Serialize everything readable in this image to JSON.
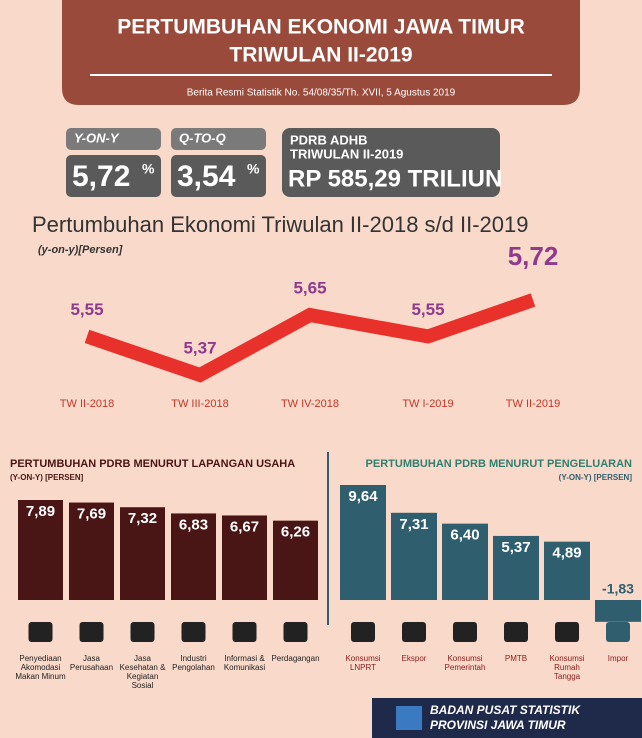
{
  "header": {
    "title_line1": "PERTUMBUHAN EKONOMI JAWA TIMUR",
    "title_line2": "TRIWULAN II-2019",
    "subtitle": "Berita Resmi Statistik No. 54/08/35/Th. XVII, 5 Agustus 2019"
  },
  "kpis": [
    {
      "label": "Y-ON-Y",
      "value": "5,72",
      "unit": "%"
    },
    {
      "label": "Q-TO-Q",
      "value": "3,54",
      "unit": "%"
    },
    {
      "label_line1": "PDRB ADHB",
      "label_line2": "TRIWULAN II-2019",
      "value": "RP 585,29 TRILIUN"
    }
  ],
  "chart_data": [
    {
      "type": "line",
      "title": "Pertumbuhan Ekonomi Triwulan II-2018 s/d II-2019",
      "subtitle": "(y-on-y)[Persen]",
      "categories": [
        "TW II-2018",
        "TW III-2018",
        "TW IV-2018",
        "TW I-2019",
        "TW II-2019"
      ],
      "values": [
        5.55,
        5.37,
        5.65,
        5.55,
        5.72
      ],
      "value_labels": [
        "5,55",
        "5,37",
        "5,65",
        "5,55",
        "5,72"
      ],
      "color": "#e8312a"
    },
    {
      "type": "bar",
      "title": "PERTUMBUHAN PDRB MENURUT LAPANGAN USAHA",
      "subtitle": "(Y-ON-Y) [PERSEN]",
      "categories": [
        "Penyediaan Akomodasi Makan Minum",
        "Jasa Perusahaan",
        "Jasa Kesehatan & Kegiatan Sosial",
        "Industri Pengolahan",
        "Informasi & Komunikasi",
        "Perdagangan"
      ],
      "values": [
        7.89,
        7.69,
        7.32,
        6.83,
        6.67,
        6.26
      ],
      "value_labels": [
        "7,89",
        "7,69",
        "7,32",
        "6,83",
        "6,67",
        "6,26"
      ],
      "color": "#4a1515"
    },
    {
      "type": "bar",
      "title": "PERTUMBUHAN PDRB MENURUT PENGELUARAN",
      "subtitle": "(Y-ON-Y) [PERSEN]",
      "categories": [
        "Konsumsi LNPRT",
        "Ekspor",
        "Konsumsi Pemerintah",
        "PMTB",
        "Konsumsi Rumah Tangga",
        "Impor"
      ],
      "values": [
        9.64,
        7.31,
        6.4,
        5.37,
        4.89,
        -1.83
      ],
      "value_labels": [
        "9,64",
        "7,31",
        "6,40",
        "5,37",
        "4,89",
        "-1,83"
      ],
      "color": "#2f5f6f"
    }
  ],
  "footer": {
    "line1": "BADAN PUSAT STATISTIK",
    "line2": "PROVINSI JAWA TIMUR"
  }
}
